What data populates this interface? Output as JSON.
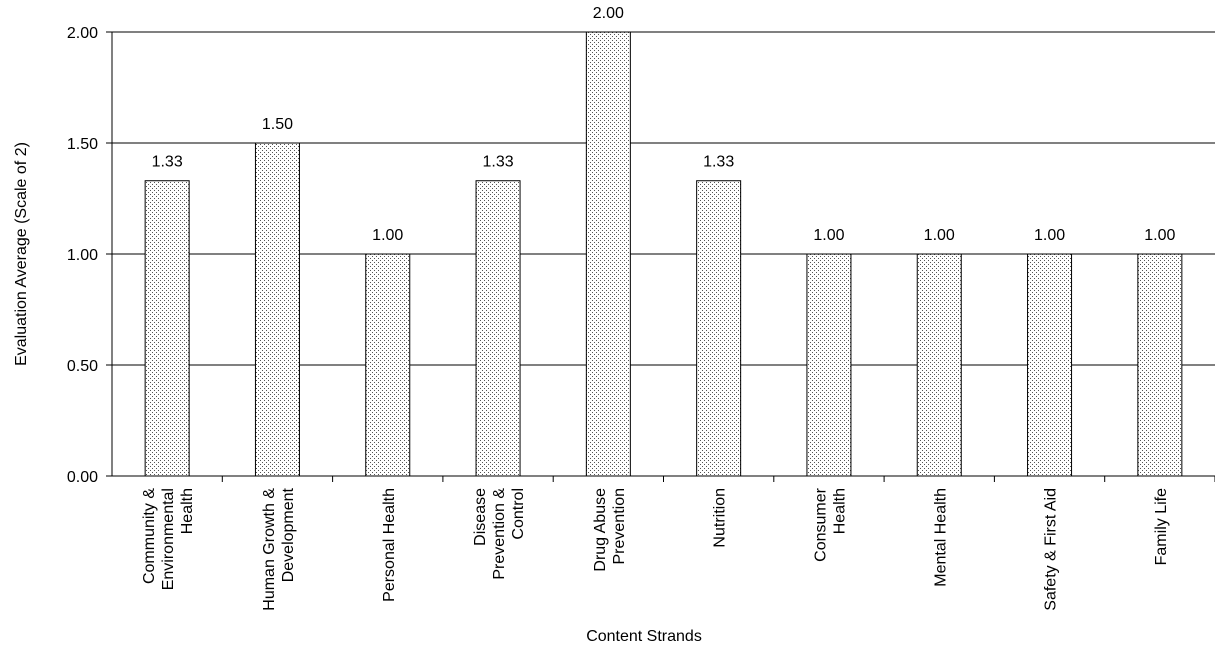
{
  "chart_data": {
    "type": "bar",
    "categories": [
      [
        "Community &",
        "Environmental",
        "Health"
      ],
      [
        "Human Growth &",
        "Development"
      ],
      [
        "Personal Health"
      ],
      [
        "Disease",
        "Prevention &",
        "Control"
      ],
      [
        "Drug Abuse",
        "Prevention"
      ],
      [
        "Nutrition"
      ],
      [
        "Consumer",
        "Health"
      ],
      [
        "Mental Health"
      ],
      [
        "Safety & First Aid"
      ],
      [
        "Family Life"
      ]
    ],
    "values": [
      1.33,
      1.5,
      1.0,
      1.33,
      2.0,
      1.33,
      1.0,
      1.0,
      1.0,
      1.0
    ],
    "data_labels": [
      "1.33",
      "1.50",
      "1.00",
      "1.33",
      "2.00",
      "1.33",
      "1.00",
      "1.00",
      "1.00",
      "1.00"
    ],
    "yticks": [
      0,
      0.5,
      1,
      1.5,
      2
    ],
    "ytick_labels": [
      "0.00",
      "0.50",
      "1.00",
      "1.50",
      "2.00"
    ],
    "ylim": [
      0,
      2
    ],
    "xlabel": "Content Strands",
    "ylabel": "Evaluation Average (Scale of 2)",
    "title": "",
    "grid": "horizontal",
    "legend": "none",
    "bar_fill": "dotted",
    "colors": {
      "bar_border": "#000000",
      "dots": "#555555",
      "grid": "#000000"
    }
  }
}
